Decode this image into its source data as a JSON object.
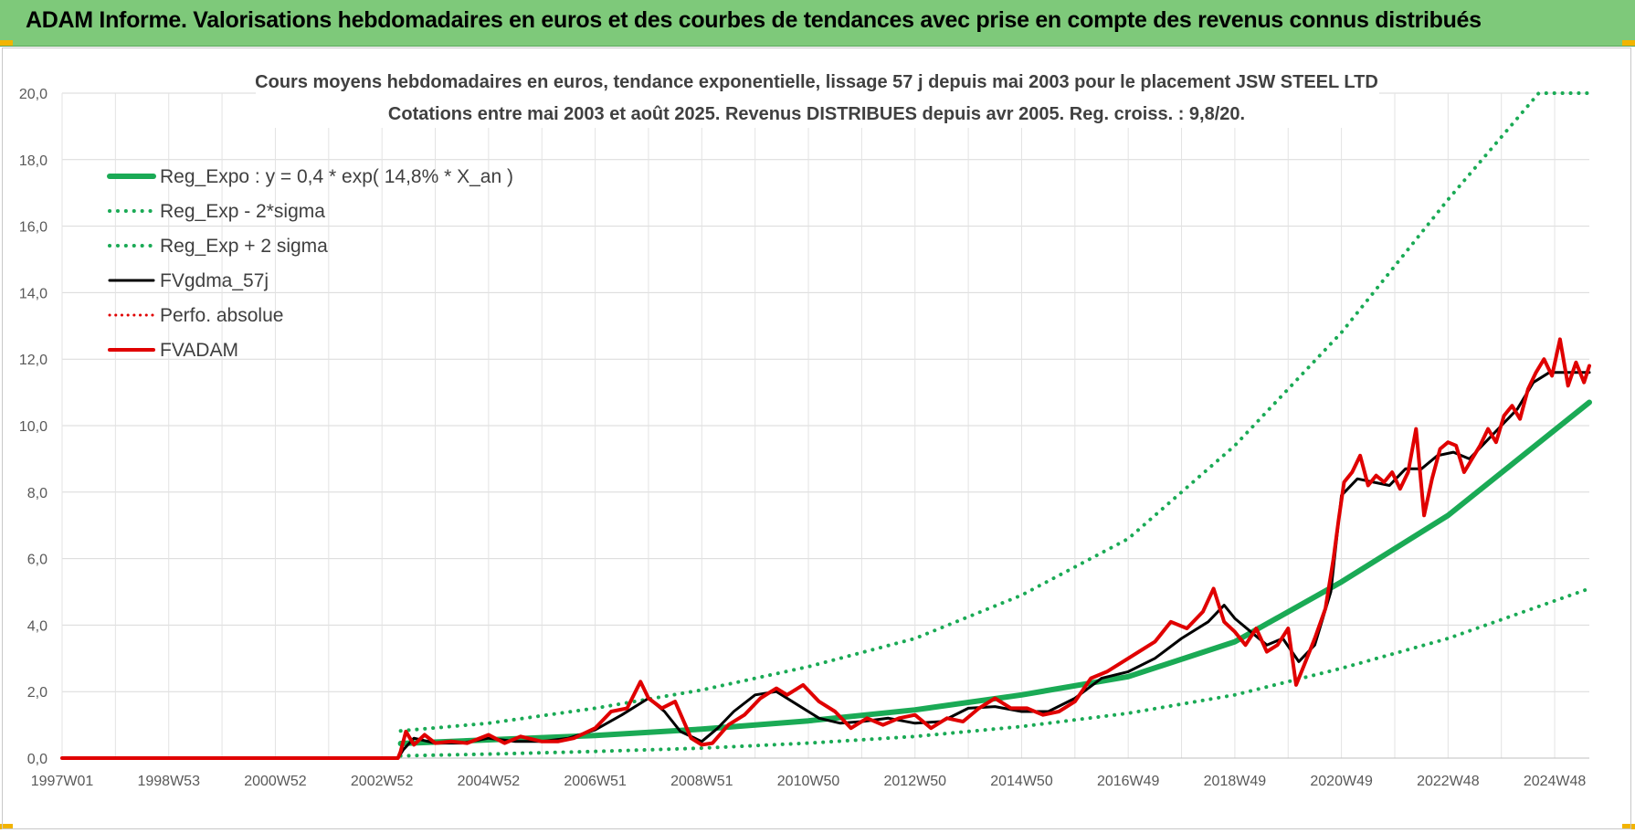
{
  "report_title": "ADAM Informe. Valorisations hebdomadaires en euros et des courbes de tendances avec prise en compte des revenus connus distribués",
  "chart_data": {
    "type": "line",
    "title_line1": "Cours moyens hebdomadaires en euros, tendance exponentielle, lissage 57 j depuis mai 2003 pour le placement JSW STEEL LTD",
    "title_line2": "Cotations entre mai 2003 et août 2025. Revenus DISTRIBUES depuis avr 2005. Reg. croiss. : 9,8/20.",
    "x_tick_labels": [
      "1997W01",
      "1998W53",
      "2000W52",
      "2002W52",
      "2004W52",
      "2006W51",
      "2008W51",
      "2010W50",
      "2012W50",
      "2014W50",
      "2016W49",
      "2018W49",
      "2020W49",
      "2022W48",
      "2024W48"
    ],
    "x_range_years": [
      1997.0,
      2025.65
    ],
    "x_tick_years": [
      1997.0,
      1999.0,
      2001.0,
      2003.0,
      2005.0,
      2007.0,
      2009.0,
      2011.0,
      2013.0,
      2015.0,
      2017.0,
      2019.0,
      2021.0,
      2023.0,
      2025.0
    ],
    "y_ticks": [
      "0,0",
      "2,0",
      "4,0",
      "6,0",
      "8,0",
      "10,0",
      "12,0",
      "14,0",
      "16,0",
      "18,0",
      "20,0"
    ],
    "ylim": [
      0,
      20
    ],
    "grid": true,
    "legend_position": "top-left",
    "start_year": 2003.35,
    "series": [
      {
        "name": "Reg_Expo : y = 0,4 * exp( 14,8% *  X_an )",
        "color": "#1aaa55",
        "style": "solid",
        "width": 6,
        "x": [
          2003.35,
          2005,
          2007,
          2009,
          2011,
          2013,
          2015,
          2017,
          2019,
          2021,
          2023,
          2025.65
        ],
        "y": [
          0.44,
          0.55,
          0.68,
          0.87,
          1.12,
          1.45,
          1.9,
          2.45,
          3.5,
          5.3,
          7.3,
          10.7
        ]
      },
      {
        "name": "Reg_Exp - 2*sigma",
        "color": "#1aaa55",
        "style": "dotted",
        "width": 4,
        "x": [
          2003.35,
          2005,
          2007,
          2009,
          2011,
          2013,
          2015,
          2017,
          2019,
          2021,
          2023,
          2025.65
        ],
        "y": [
          0.07,
          0.12,
          0.2,
          0.3,
          0.45,
          0.65,
          0.95,
          1.35,
          1.9,
          2.7,
          3.6,
          5.1
        ]
      },
      {
        "name": "Reg_Exp + 2 sigma",
        "color": "#1aaa55",
        "style": "dotted",
        "width": 4,
        "x": [
          2003.35,
          2005,
          2007,
          2009,
          2011,
          2013,
          2015,
          2017,
          2019,
          2021,
          2023,
          2024.7,
          2025.65
        ],
        "y": [
          0.82,
          1.05,
          1.5,
          2.05,
          2.75,
          3.6,
          4.9,
          6.6,
          9.4,
          12.8,
          16.8,
          20.0,
          20.0
        ]
      },
      {
        "name": "FVgdma_57j",
        "color": "#000000",
        "style": "solid",
        "width": 3,
        "x": [
          1997.0,
          2003.3,
          2003.4,
          2003.6,
          2004.0,
          2004.5,
          2005.0,
          2005.5,
          2006.0,
          2006.5,
          2007.0,
          2007.5,
          2008.0,
          2008.3,
          2008.6,
          2009.0,
          2009.3,
          2009.6,
          2010.0,
          2010.4,
          2010.8,
          2011.2,
          2011.6,
          2012.0,
          2012.5,
          2013.0,
          2013.5,
          2014.0,
          2014.5,
          2015.0,
          2015.5,
          2016.0,
          2016.5,
          2017.0,
          2017.5,
          2018.0,
          2018.5,
          2018.8,
          2019.0,
          2019.3,
          2019.6,
          2019.9,
          2020.2,
          2020.5,
          2020.8,
          2021.0,
          2021.3,
          2021.6,
          2021.9,
          2022.2,
          2022.5,
          2022.8,
          2023.1,
          2023.4,
          2023.7,
          2024.0,
          2024.3,
          2024.6,
          2024.9,
          2025.2,
          2025.65
        ],
        "y": [
          0,
          0,
          0.25,
          0.6,
          0.45,
          0.45,
          0.6,
          0.5,
          0.5,
          0.6,
          0.85,
          1.3,
          1.8,
          1.4,
          0.8,
          0.5,
          0.9,
          1.4,
          1.9,
          2.0,
          1.6,
          1.2,
          1.05,
          1.1,
          1.2,
          1.05,
          1.1,
          1.5,
          1.55,
          1.4,
          1.4,
          1.8,
          2.4,
          2.6,
          3.0,
          3.6,
          4.1,
          4.6,
          4.2,
          3.8,
          3.4,
          3.6,
          2.9,
          3.4,
          5.0,
          7.9,
          8.4,
          8.3,
          8.2,
          8.7,
          8.7,
          9.1,
          9.2,
          9.0,
          9.5,
          10.0,
          10.5,
          11.3,
          11.6,
          11.6,
          11.6
        ]
      },
      {
        "name": "Perfo. absolue",
        "color": "#e00000",
        "style": "dotted",
        "width": 3,
        "x": [],
        "y": []
      },
      {
        "name": "FVADAM",
        "color": "#e00000",
        "style": "solid",
        "width": 4,
        "x": [
          1997.0,
          2003.3,
          2003.35,
          2003.45,
          2003.6,
          2003.8,
          2004.0,
          2004.3,
          2004.6,
          2005.0,
          2005.3,
          2005.6,
          2006.0,
          2006.3,
          2006.6,
          2007.0,
          2007.3,
          2007.6,
          2007.85,
          2008.0,
          2008.25,
          2008.5,
          2008.8,
          2009.0,
          2009.2,
          2009.5,
          2009.8,
          2010.1,
          2010.4,
          2010.6,
          2010.9,
          2011.2,
          2011.5,
          2011.8,
          2012.1,
          2012.4,
          2012.7,
          2013.0,
          2013.3,
          2013.6,
          2013.9,
          2014.2,
          2014.5,
          2014.8,
          2015.1,
          2015.4,
          2015.7,
          2016.0,
          2016.3,
          2016.6,
          2016.9,
          2017.2,
          2017.5,
          2017.8,
          2018.1,
          2018.4,
          2018.6,
          2018.8,
          2019.0,
          2019.2,
          2019.4,
          2019.6,
          2019.8,
          2020.0,
          2020.15,
          2020.3,
          2020.5,
          2020.7,
          2020.85,
          2020.95,
          2021.05,
          2021.2,
          2021.35,
          2021.5,
          2021.65,
          2021.8,
          2021.95,
          2022.1,
          2022.25,
          2022.4,
          2022.55,
          2022.7,
          2022.85,
          2023.0,
          2023.15,
          2023.3,
          2023.45,
          2023.6,
          2023.75,
          2023.9,
          2024.05,
          2024.2,
          2024.35,
          2024.5,
          2024.65,
          2024.8,
          2024.95,
          2025.1,
          2025.25,
          2025.4,
          2025.55,
          2025.65
        ],
        "y": [
          0,
          0,
          0.2,
          0.8,
          0.4,
          0.7,
          0.45,
          0.5,
          0.45,
          0.7,
          0.45,
          0.65,
          0.5,
          0.5,
          0.6,
          0.9,
          1.4,
          1.5,
          2.3,
          1.8,
          1.5,
          1.7,
          0.6,
          0.4,
          0.45,
          1.0,
          1.3,
          1.8,
          2.1,
          1.9,
          2.2,
          1.7,
          1.4,
          0.9,
          1.2,
          1.0,
          1.2,
          1.3,
          0.9,
          1.2,
          1.1,
          1.5,
          1.8,
          1.5,
          1.5,
          1.3,
          1.4,
          1.7,
          2.4,
          2.6,
          2.9,
          3.2,
          3.5,
          4.1,
          3.9,
          4.4,
          5.1,
          4.1,
          3.8,
          3.4,
          3.9,
          3.2,
          3.4,
          3.9,
          2.2,
          2.8,
          3.6,
          4.5,
          6.0,
          7.2,
          8.3,
          8.6,
          9.1,
          8.2,
          8.5,
          8.3,
          8.6,
          8.1,
          8.6,
          9.9,
          7.3,
          8.4,
          9.3,
          9.5,
          9.4,
          8.6,
          9.0,
          9.4,
          9.9,
          9.5,
          10.3,
          10.6,
          10.2,
          11.1,
          11.6,
          12.0,
          11.5,
          12.6,
          11.2,
          11.9,
          11.3,
          11.8
        ]
      }
    ]
  }
}
